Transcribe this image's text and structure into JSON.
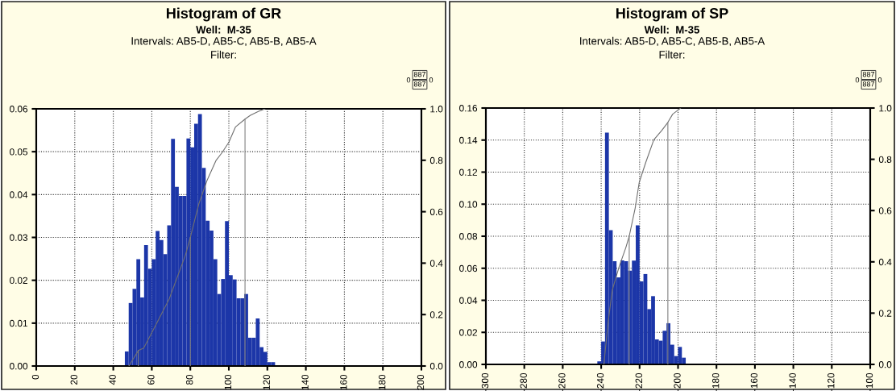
{
  "chart_data": [
    {
      "type": "histogram",
      "title": "Histogram of GR",
      "subtitle": "Well:  M-35",
      "annotations": [
        "Intervals: AB5-D, AB5-C, AB5-B, AB5-A",
        "Filter:",
        "0",
        "887",
        "887",
        "0"
      ],
      "bins": [
        46,
        48,
        50,
        52,
        54,
        56,
        58,
        60,
        62,
        64,
        66,
        68,
        70,
        72,
        74,
        76,
        78,
        80,
        82,
        84,
        86,
        88,
        90,
        92,
        94,
        96,
        98,
        100,
        102,
        104,
        106,
        108,
        110,
        112,
        114,
        116,
        118,
        120,
        122,
        124
      ],
      "series": [
        {
          "color": "#1c36a8",
          "values": [
            0.0034,
            0.0147,
            0.018,
            0.0249,
            0.016,
            0.0282,
            0.0227,
            0.0249,
            0.0315,
            0.0294,
            0.0261,
            0.0328,
            0.053,
            0.0418,
            0.0397,
            0.0397,
            0.0531,
            0.051,
            0.0565,
            0.0588,
            0.0462,
            0.0339,
            0.0316,
            0.0249,
            0.0168,
            0.0203,
            0.0338,
            0.0212,
            0.0202,
            0.0158,
            0.0158,
            0.0168,
            0.0066,
            0.0066,
            0.0111,
            0.0044,
            0.0033,
            0.0009,
            0.0009
          ]
        },
        {
          "type": "line",
          "axis": "y2",
          "color": "#707070",
          "x": [
            48.1,
            53,
            55.8,
            61.4,
            69,
            77.4,
            80,
            84.4,
            88.6,
            93.4,
            96.5,
            100,
            103.5,
            108.4,
            111.2,
            115.3,
            118.8
          ],
          "values": [
            0,
            0.06,
            0.07,
            0.15,
            0.26,
            0.43,
            0.5,
            0.63,
            0.72,
            0.8,
            0.83,
            0.87,
            0.93,
            0.96,
            0.975,
            0.99,
            1.0
          ]
        },
        {
          "type": "line",
          "axis": "y2",
          "color": "#808080",
          "x": [
            53,
            53
          ],
          "values": [
            0,
            0.06
          ]
        },
        {
          "type": "line",
          "axis": "y2",
          "color": "#808080",
          "x": [
            80,
            80
          ],
          "values": [
            0,
            0.5
          ]
        },
        {
          "type": "line",
          "axis": "y2",
          "color": "#808080",
          "x": [
            108.4,
            108.4
          ],
          "values": [
            0,
            0.96
          ]
        }
      ],
      "xlim": [
        0,
        200
      ],
      "xticks": [
        0,
        20,
        40,
        60,
        80,
        100,
        120,
        140,
        160,
        180,
        200
      ],
      "ylim": [
        0,
        0.06
      ],
      "yticks": [
        {
          "value": 0,
          "label": "0.00"
        },
        {
          "value": 0.01,
          "label": "0.01"
        },
        {
          "value": 0.02,
          "label": "0.02"
        },
        {
          "value": 0.03,
          "label": "0.03"
        },
        {
          "value": 0.04,
          "label": "0.04"
        },
        {
          "value": 0.05,
          "label": "0.05"
        },
        {
          "value": 0.06,
          "label": "0.06"
        }
      ],
      "y2lim": [
        0,
        1
      ],
      "y2ticks": [
        {
          "value": 0,
          "label": "0.0"
        },
        {
          "value": 0.2,
          "label": "0.2"
        },
        {
          "value": 0.4,
          "label": "0.4"
        },
        {
          "value": 0.6,
          "label": "0.6"
        },
        {
          "value": 0.8,
          "label": "0.8"
        },
        {
          "value": 1,
          "label": "1.0"
        }
      ],
      "grid": true
    },
    {
      "type": "histogram",
      "title": "Histogram of SP",
      "subtitle": "Well:  M-35",
      "annotations": [
        "Intervals: AB5-D, AB5-C, AB5-B, AB5-A",
        "Filter:",
        "0",
        "887",
        "887",
        "0"
      ],
      "bins": [
        -242,
        -240,
        -238,
        -236,
        -234,
        -232,
        -230,
        -228,
        -226,
        -224,
        -222,
        -220,
        -218,
        -216,
        -214,
        -212,
        -210,
        -208,
        -206,
        -204,
        -202,
        -200,
        -198,
        -196
      ],
      "series": [
        {
          "color": "#1c36a8",
          "values": [
            0.0019,
            0.0143,
            0.1447,
            0.0838,
            0.0644,
            0.0543,
            0.0649,
            0.0644,
            0.0585,
            0.0648,
            0.0868,
            0.0518,
            0.0564,
            0.0345,
            0.0426,
            0.0156,
            0.0148,
            0.021,
            0.0257,
            0.0123,
            0.0052,
            0.0109,
            0.0042
          ]
        },
        {
          "type": "line",
          "axis": "y2",
          "color": "#707070",
          "x": [
            -238.6,
            -236.3,
            -234.2,
            -230.7,
            -227.2,
            -225.4,
            -222.3,
            -220.2,
            -216.7,
            -212.6,
            -208.4,
            -205.3,
            -202.8,
            -198.6
          ],
          "values": [
            0,
            0.17,
            0.29,
            0.38,
            0.455,
            0.5,
            0.61,
            0.71,
            0.79,
            0.876,
            0.913,
            0.944,
            0.976,
            1.0
          ]
        },
        {
          "type": "line",
          "axis": "y2",
          "color": "#808080",
          "x": [
            -225.4,
            -225.4
          ],
          "values": [
            0,
            0.5
          ]
        },
        {
          "type": "line",
          "axis": "y2",
          "color": "#808080",
          "x": [
            -205.3,
            -205.3
          ],
          "values": [
            0,
            0.944
          ]
        }
      ],
      "xlim": [
        -300,
        -100
      ],
      "xticks": [
        -300,
        -280,
        -260,
        -240,
        -220,
        -200,
        -180,
        -160,
        -140,
        -120,
        -100
      ],
      "ylim": [
        0,
        0.16
      ],
      "yticks": [
        {
          "value": 0,
          "label": "0.00"
        },
        {
          "value": 0.02,
          "label": "0.02"
        },
        {
          "value": 0.04,
          "label": "0.04"
        },
        {
          "value": 0.06,
          "label": "0.06"
        },
        {
          "value": 0.08,
          "label": "0.08"
        },
        {
          "value": 0.1,
          "label": "0.10"
        },
        {
          "value": 0.12,
          "label": "0.12"
        },
        {
          "value": 0.14,
          "label": "0.14"
        },
        {
          "value": 0.16,
          "label": "0.16"
        }
      ],
      "y2lim": [
        0,
        1
      ],
      "y2ticks": [
        {
          "value": 0,
          "label": "0.0"
        },
        {
          "value": 0.2,
          "label": "0.2"
        },
        {
          "value": 0.4,
          "label": "0.4"
        },
        {
          "value": 0.6,
          "label": "0.6"
        },
        {
          "value": 0.8,
          "label": "0.8"
        },
        {
          "value": 1,
          "label": "1.0"
        }
      ],
      "grid": true
    }
  ]
}
